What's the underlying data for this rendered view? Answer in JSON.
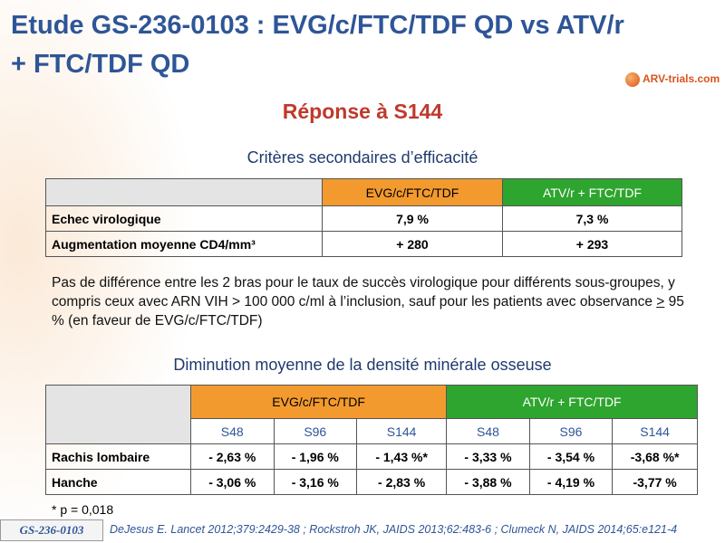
{
  "header": {
    "title_line1": "Etude GS-236-0103 : EVG/c/FTC/TDF QD vs ATV/r",
    "title_line2": "+ FTC/TDF QD",
    "logo": "ARV-trials.com"
  },
  "subtitle": "Réponse à S144",
  "section1": {
    "heading": "Critères secondaires d’efficacité",
    "table": {
      "columns": [
        "EVG/c/FTC/TDF",
        "ATV/r + FTC/TDF"
      ],
      "rows": [
        [
          "Echec virologique",
          "7,9 %",
          "7,3 %"
        ],
        [
          "Augmentation moyenne CD4/mm³",
          "+ 280",
          "+ 293"
        ]
      ]
    }
  },
  "paragraph": {
    "text_before": "Pas de différence entre les 2 bras pour le taux de succès virologique pour différents sous-groupes, y compris ceux avec ARN VIH > 100 000 c/ml à l’inclusion, sauf pour les patients avec observance ",
    "symbol": ">",
    "text_after": " 95 % (en faveur de EVG/c/FTC/TDF)"
  },
  "section2": {
    "heading": "Diminution moyenne de la densité minérale osseuse",
    "table": {
      "groups": [
        "EVG/c/FTC/TDF",
        "ATV/r + FTC/TDF"
      ],
      "subcolumns": [
        "S48",
        "S96",
        "S144",
        "S48",
        "S96",
        "S144"
      ],
      "rows": [
        [
          "Rachis lombaire",
          "- 2,63 %",
          "- 1,96 %",
          "- 1,43 %*",
          "- 3,33 %",
          "- 3,54 %",
          "-3,68 %*"
        ],
        [
          "Hanche",
          "- 3,06 %",
          "- 3,16 %",
          "- 2,83 %",
          "- 3,88 %",
          "- 4,19 %",
          "-3,77 %"
        ]
      ]
    }
  },
  "footnote": "* p = 0,018",
  "footer": {
    "badge": "GS-236-0103",
    "reference": "DeJesus E. Lancet 2012;379:2429-38 ; Rockstroh JK, JAIDS 2013;62:483-6 ; Clumeck N, JAIDS 2014;65:e121-4"
  }
}
